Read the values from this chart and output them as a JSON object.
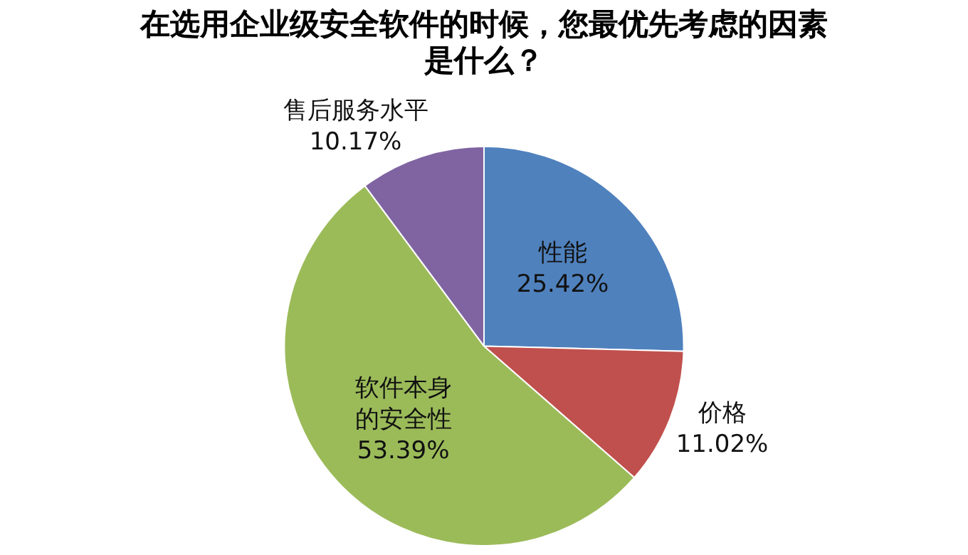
{
  "chart_data": {
    "type": "pie",
    "title": "在选用企业级安全软件的时候，您最优先考虑的因素是什么？",
    "categories": [
      "性能",
      "价格",
      "软件本身的安全性",
      "售后服务水平"
    ],
    "values": [
      25.42,
      11.02,
      53.39,
      10.17
    ],
    "colors": [
      "#4f81bd",
      "#c0504d",
      "#9bbb59",
      "#8064a2"
    ],
    "value_labels": [
      "25.42%",
      "11.02%",
      "53.39%",
      "10.17%"
    ],
    "legend": false
  }
}
